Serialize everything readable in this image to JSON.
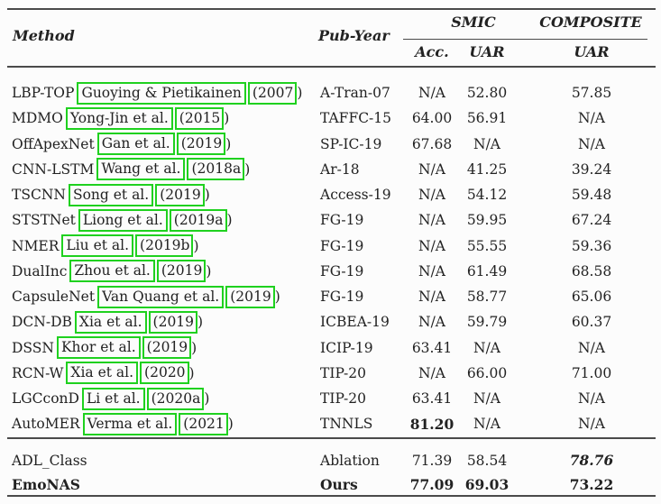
{
  "annotation": {
    "box_color": "#1fd11f"
  },
  "table": {
    "header": {
      "method": "Method",
      "pub_year": "Pub-Year",
      "smic": "SMIC",
      "composite": "COMPOSITE",
      "acc": "Acc.",
      "uar_smic": "UAR",
      "uar_composite": "UAR"
    },
    "rows": [
      {
        "name": "LBP-TOP",
        "authors": "Guoying & Pietikainen",
        "year": "(2007",
        "close": ")",
        "pub": "A-Tran-07",
        "acc": "N/A",
        "uar": "52.80",
        "cuar": "57.85"
      },
      {
        "name": "MDMO",
        "authors": "Yong-Jin et al.",
        "year": "(2015",
        "close": ")",
        "pub": "TAFFC-15",
        "acc": "64.00",
        "uar": "56.91",
        "cuar": "N/A"
      },
      {
        "name": "OffApexNet",
        "authors": "Gan et al.",
        "year": "(2019",
        "close": ")",
        "pub": "SP-IC-19",
        "acc": "67.68",
        "uar": "N/A",
        "cuar": "N/A"
      },
      {
        "name": "CNN-LSTM",
        "authors": "Wang et al.",
        "year": "(2018a",
        "close": ")",
        "pub": "Ar-18",
        "acc": "N/A",
        "uar": "41.25",
        "cuar": "39.24"
      },
      {
        "name": "TSCNN",
        "authors": "Song et al.",
        "year": "(2019",
        "close": ")",
        "pub": "Access-19",
        "acc": "N/A",
        "uar": "54.12",
        "cuar": "59.48"
      },
      {
        "name": "STSTNet",
        "authors": "Liong et al.",
        "year": "(2019a",
        "close": ")",
        "pub": "FG-19",
        "acc": "N/A",
        "uar": "59.95",
        "cuar": "67.24"
      },
      {
        "name": "NMER",
        "authors": "Liu et al.",
        "year": "(2019b",
        "close": ")",
        "pub": "FG-19",
        "acc": "N/A",
        "uar": "55.55",
        "cuar": "59.36"
      },
      {
        "name": "DualInc",
        "authors": "Zhou et al.",
        "year": "(2019",
        "close": ")",
        "pub": "FG-19",
        "acc": "N/A",
        "uar": "61.49",
        "cuar": "68.58"
      },
      {
        "name": "CapsuleNet",
        "authors": "Van Quang et al.",
        "year": "(2019",
        "close": ")",
        "pub": "FG-19",
        "acc": "N/A",
        "uar": "58.77",
        "cuar": "65.06"
      },
      {
        "name": "DCN-DB",
        "authors": "Xia et al.",
        "year": "(2019",
        "close": ")",
        "pub": "ICBEA-19",
        "acc": "N/A",
        "uar": "59.79",
        "cuar": "60.37"
      },
      {
        "name": "DSSN",
        "authors": "Khor et al.",
        "year": "(2019",
        "close": ")",
        "pub": "ICIP-19",
        "acc": "63.41",
        "uar": "N/A",
        "cuar": "N/A"
      },
      {
        "name": "RCN-W",
        "authors": "Xia et al.",
        "year": "(2020",
        "close": ")",
        "pub": "TIP-20",
        "acc": "N/A",
        "uar": "66.00",
        "cuar": "71.00"
      },
      {
        "name": "LGCconD",
        "authors": "Li et al.",
        "year": "(2020a",
        "close": ")",
        "pub": "TIP-20",
        "acc": "63.41",
        "uar": "N/A",
        "cuar": "N/A"
      },
      {
        "name": "AutoMER",
        "authors": "Verma et al.",
        "year": "(2021",
        "close": ")",
        "pub": "TNNLS",
        "acc": "81.20",
        "uar": "N/A",
        "cuar": "N/A"
      }
    ],
    "footer": [
      {
        "method": "ADL_Class",
        "pub": "Ablation",
        "acc": "71.39",
        "uar": "58.54",
        "cuar": "78.76"
      },
      {
        "method": "EmoNAS",
        "pub": "Ours",
        "acc": "77.09",
        "uar": "69.03",
        "cuar": "73.22"
      }
    ]
  }
}
